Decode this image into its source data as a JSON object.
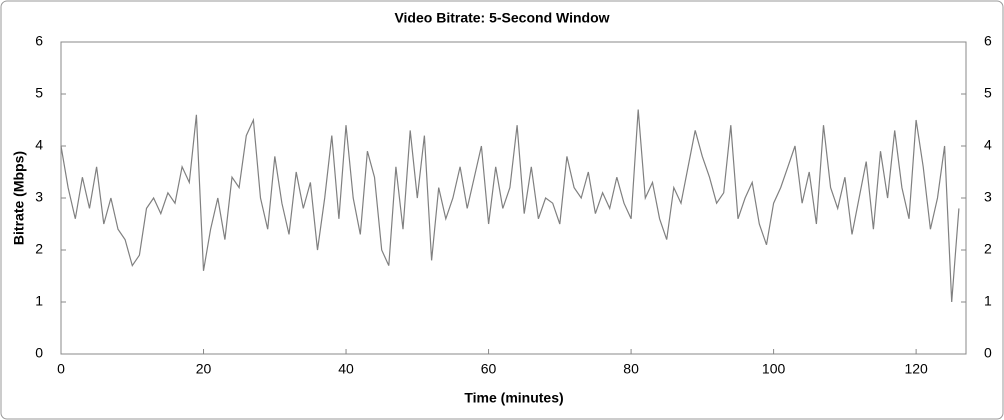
{
  "chart_data": {
    "type": "line",
    "title": "Video Bitrate: 5-Second Window",
    "x_label": "Time (minutes)",
    "y_label": "Bitrate (Mbps)",
    "x": [
      0,
      1,
      2,
      3,
      4,
      5,
      6,
      7,
      8,
      9,
      10,
      11,
      12,
      13,
      14,
      15,
      16,
      17,
      18,
      19,
      20,
      21,
      22,
      23,
      24,
      25,
      26,
      27,
      28,
      29,
      30,
      31,
      32,
      33,
      34,
      35,
      36,
      37,
      38,
      39,
      40,
      41,
      42,
      43,
      44,
      45,
      46,
      47,
      48,
      49,
      50,
      51,
      52,
      53,
      54,
      55,
      56,
      57,
      58,
      59,
      60,
      61,
      62,
      63,
      64,
      65,
      66,
      67,
      68,
      69,
      70,
      71,
      72,
      73,
      74,
      75,
      76,
      77,
      78,
      79,
      80,
      81,
      82,
      83,
      84,
      85,
      86,
      87,
      88,
      89,
      90,
      91,
      92,
      93,
      94,
      95,
      96,
      97,
      98,
      99,
      100,
      101,
      102,
      103,
      104,
      105,
      106,
      107,
      108,
      109,
      110,
      111,
      112,
      113,
      114,
      115,
      116,
      117,
      118,
      119,
      120,
      121,
      122,
      123,
      124,
      125,
      126
    ],
    "values": [
      4.0,
      3.2,
      2.6,
      3.4,
      2.8,
      3.6,
      2.5,
      3.0,
      2.4,
      2.2,
      1.7,
      1.9,
      2.8,
      3.0,
      2.7,
      3.1,
      2.9,
      3.6,
      3.3,
      4.6,
      1.6,
      2.4,
      3.0,
      2.2,
      3.4,
      3.2,
      4.2,
      4.5,
      3.0,
      2.4,
      3.8,
      2.9,
      2.3,
      3.5,
      2.8,
      3.3,
      2.0,
      3.0,
      4.2,
      2.6,
      4.4,
      3.0,
      2.3,
      3.9,
      3.4,
      2.0,
      1.7,
      3.6,
      2.4,
      4.3,
      3.0,
      4.2,
      1.8,
      3.2,
      2.6,
      3.0,
      3.6,
      2.8,
      3.4,
      4.0,
      2.5,
      3.6,
      2.8,
      3.2,
      4.4,
      2.7,
      3.6,
      2.6,
      3.0,
      2.9,
      2.5,
      3.8,
      3.2,
      3.0,
      3.5,
      2.7,
      3.1,
      2.8,
      3.4,
      2.9,
      2.6,
      4.7,
      3.0,
      3.3,
      2.6,
      2.2,
      3.2,
      2.9,
      3.6,
      4.3,
      3.8,
      3.4,
      2.9,
      3.1,
      4.4,
      2.6,
      3.0,
      3.3,
      2.5,
      2.1,
      2.9,
      3.2,
      3.6,
      4.0,
      2.9,
      3.5,
      2.5,
      4.4,
      3.2,
      2.8,
      3.4,
      2.3,
      3.0,
      3.7,
      2.4,
      3.9,
      3.0,
      4.3,
      3.2,
      2.6,
      4.5,
      3.6,
      2.4,
      3.0,
      4.0,
      1.0,
      2.8
    ],
    "color": "#808080",
    "xlim": [
      0,
      127
    ],
    "xticks": [
      0,
      20,
      40,
      60,
      80,
      100,
      120
    ],
    "ylim": [
      0,
      6
    ],
    "yticks": [
      0,
      1,
      2,
      3,
      4,
      5,
      6
    ],
    "y2lim": [
      0,
      6
    ],
    "y2ticks": [
      0,
      1,
      2,
      3,
      4,
      5,
      6
    ],
    "grid": false
  }
}
